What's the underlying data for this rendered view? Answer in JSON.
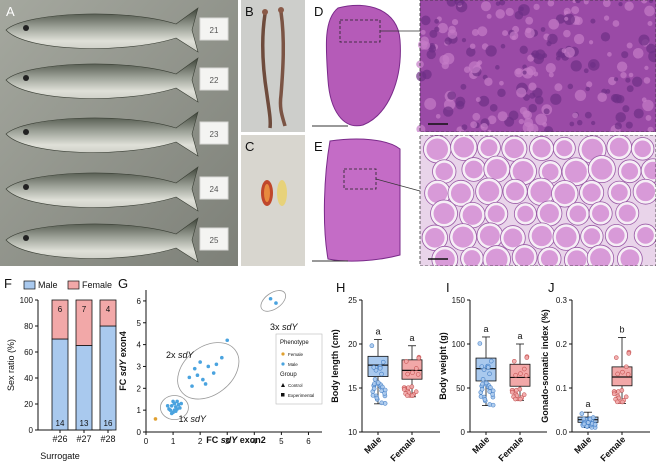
{
  "panel_labels": {
    "A": "A",
    "B": "B",
    "C": "C",
    "D": "D",
    "E": "E",
    "F": "F",
    "G": "G",
    "H": "H",
    "I": "I",
    "J": "J"
  },
  "photo_A": {
    "tags": [
      "21",
      "22",
      "23",
      "24",
      "25"
    ]
  },
  "colors": {
    "male": "#a9c9ee",
    "male_stroke": "#3b78c2",
    "female": "#f2a8a8",
    "female_stroke": "#c24a4a",
    "tissue": "#c264c2",
    "tissue_dark": "#7a2a8a",
    "bg_photo": "#9a9c94",
    "dot_male": "#4aa3df",
    "dot_female": "#e0a030"
  },
  "chart_data": [
    {
      "id": "F",
      "type": "bar",
      "stacked": true,
      "categories": [
        "#26",
        "#27",
        "#28"
      ],
      "series": [
        {
          "name": "Male",
          "values": [
            14,
            13,
            16
          ]
        },
        {
          "name": "Female",
          "values": [
            6,
            7,
            4
          ]
        }
      ],
      "percent_male": [
        70,
        65,
        80
      ],
      "xlabel": "Surrogate",
      "ylabel": "Sex ratio (%)",
      "ylim": [
        0,
        100
      ],
      "yticks": [
        "0",
        "20",
        "40",
        "60",
        "80",
        "100"
      ],
      "legend": "top"
    },
    {
      "id": "G",
      "type": "scatter",
      "xlabel_pre": "FC ",
      "xlabel_em": "sdY",
      "xlabel_post": " exon2",
      "ylabel_pre": "FC ",
      "ylabel_em": "sdY",
      "ylabel_post": " exon4",
      "xlim": [
        0,
        6.5
      ],
      "ylim": [
        0,
        6.5
      ],
      "xticks": [
        "0",
        "1",
        "2",
        "3",
        "4",
        "5",
        "6"
      ],
      "yticks": [
        "0",
        "1",
        "2",
        "3",
        "4",
        "5",
        "6"
      ],
      "annotations": [
        {
          "pre": "1x ",
          "em": "sdY"
        },
        {
          "pre": "2x ",
          "em": "sdY"
        },
        {
          "pre": "3x ",
          "em": "sdY"
        }
      ],
      "legend": {
        "title1": "Phenotype",
        "female": "Female",
        "male": "Male",
        "title2": "Group",
        "control": "Control",
        "experimental": "Experimental"
      },
      "points_male": [
        [
          0.85,
          1.05
        ],
        [
          0.95,
          1.2
        ],
        [
          1.0,
          0.9
        ],
        [
          1.05,
          1.3
        ],
        [
          1.1,
          1.15
        ],
        [
          0.9,
          1.0
        ],
        [
          1.15,
          1.05
        ],
        [
          1.2,
          1.25
        ],
        [
          1.0,
          1.4
        ],
        [
          0.95,
          0.85
        ],
        [
          1.1,
          0.95
        ],
        [
          1.25,
          1.1
        ],
        [
          1.3,
          1.3
        ],
        [
          0.8,
          1.2
        ],
        [
          1.05,
          1.0
        ],
        [
          1.15,
          1.4
        ],
        [
          1.7,
          2.1
        ],
        [
          1.9,
          2.6
        ],
        [
          2.1,
          2.4
        ],
        [
          2.3,
          3.0
        ],
        [
          1.8,
          2.9
        ],
        [
          2.5,
          2.7
        ],
        [
          2.0,
          3.2
        ],
        [
          2.8,
          3.4
        ],
        [
          2.2,
          2.2
        ],
        [
          1.6,
          2.5
        ],
        [
          3.0,
          4.2
        ],
        [
          2.6,
          3.1
        ],
        [
          4.6,
          6.1
        ],
        [
          4.8,
          5.9
        ]
      ],
      "points_female": [
        [
          0.35,
          0.6
        ]
      ]
    },
    {
      "id": "H",
      "type": "box",
      "ylabel": "Body length (cm)",
      "ylim": [
        10,
        25
      ],
      "yticks": [
        "10",
        "15",
        "20",
        "25"
      ],
      "categories": [
        "Male",
        "Female"
      ],
      "letters": [
        "a",
        "a"
      ],
      "box": [
        {
          "min": 13.2,
          "q1": 16.3,
          "median": 17.6,
          "q3": 18.6,
          "max": 20.5
        },
        {
          "min": 14.0,
          "q1": 16.0,
          "median": 17.0,
          "q3": 18.2,
          "max": 19.8
        }
      ]
    },
    {
      "id": "I",
      "type": "box",
      "ylabel": "Body weight (g)",
      "ylim": [
        0,
        150
      ],
      "yticks": [
        "0",
        "50",
        "100",
        "150"
      ],
      "categories": [
        "Male",
        "Female"
      ],
      "letters": [
        "a",
        "a"
      ],
      "box": [
        {
          "min": 30,
          "q1": 58,
          "median": 72,
          "q3": 84,
          "max": 108
        },
        {
          "min": 36,
          "q1": 52,
          "median": 62,
          "q3": 77,
          "max": 100
        }
      ]
    },
    {
      "id": "J",
      "type": "box",
      "ylabel": "Gonado-somatic index (%)",
      "ylim": [
        0,
        0.3
      ],
      "yticks": [
        "0.0",
        "0.1",
        "0.2",
        "0.3"
      ],
      "categories": [
        "Male",
        "Female"
      ],
      "letters": [
        "a",
        "b"
      ],
      "box": [
        {
          "min": 0.01,
          "q1": 0.022,
          "median": 0.028,
          "q3": 0.034,
          "max": 0.045
        },
        {
          "min": 0.065,
          "q1": 0.105,
          "median": 0.125,
          "q3": 0.148,
          "max": 0.215
        }
      ]
    }
  ]
}
